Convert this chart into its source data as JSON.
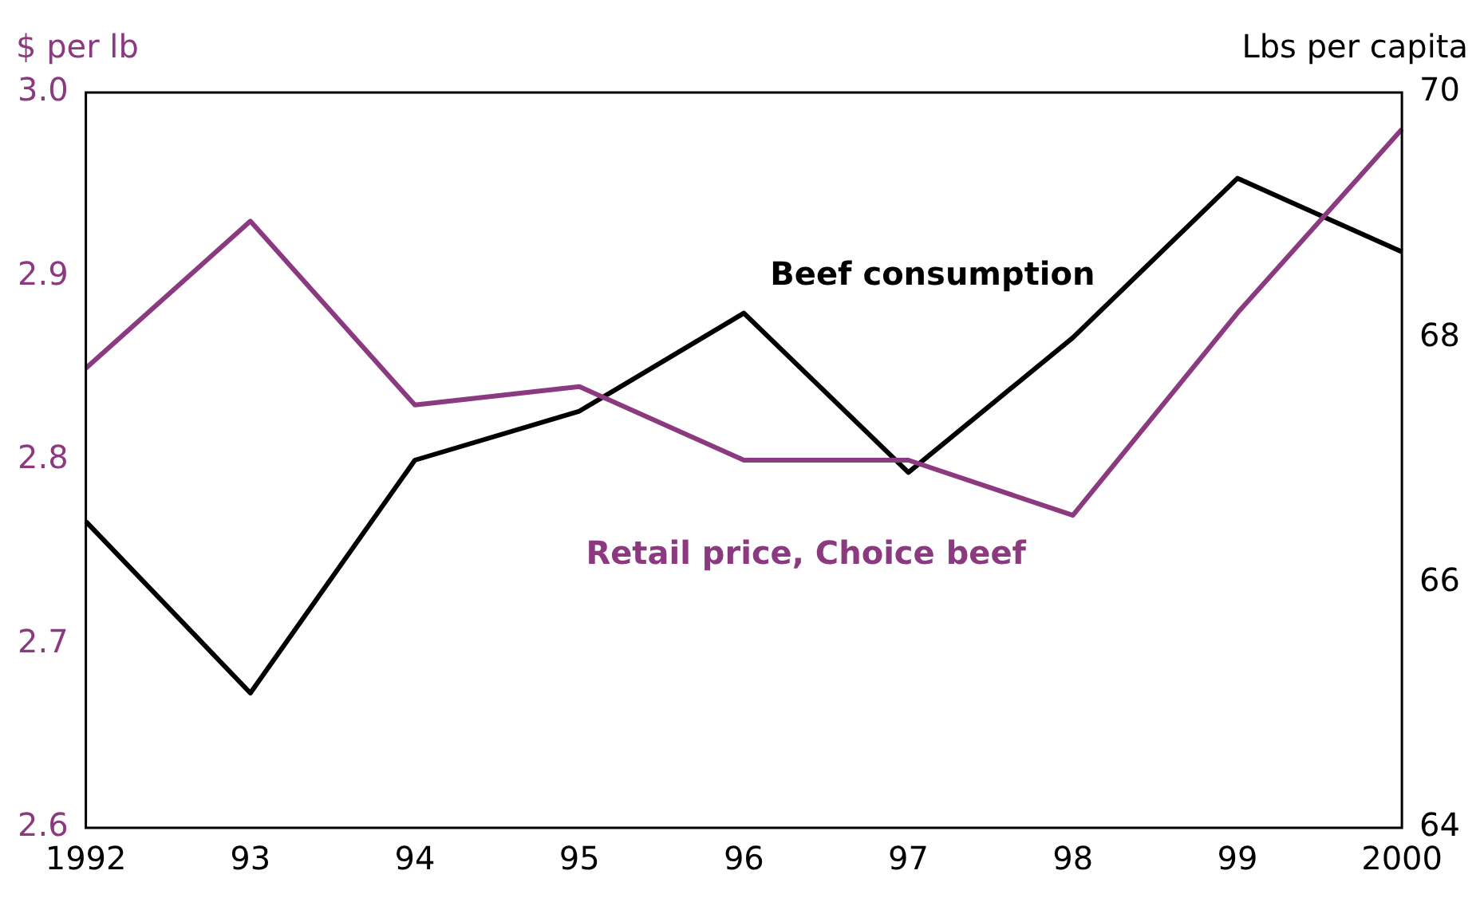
{
  "chart_data": {
    "type": "line",
    "ylabel": "$ per lb",
    "y2label": "Lbs per capita",
    "categories": [
      "1992",
      "93",
      "94",
      "95",
      "96",
      "97",
      "98",
      "99",
      "2000"
    ],
    "series": [
      {
        "name": "Retail price, Choice beef",
        "color": "#8b3a80",
        "values": [
          2.85,
          2.93,
          2.83,
          2.84,
          2.8,
          2.8,
          2.77,
          2.88,
          2.98
        ]
      },
      {
        "name": "Beef consumption",
        "color": "#000000",
        "axis": "y2",
        "values": [
          66.5,
          65.1,
          67.0,
          67.4,
          68.2,
          66.9,
          68.0,
          69.3,
          68.7
        ]
      }
    ],
    "ylim": [
      2.6,
      3.0
    ],
    "yticks": [
      2.6,
      2.7,
      2.8,
      2.9,
      {
        "value": 3,
        "label": "3.0"
      }
    ],
    "y2lim": [
      64,
      70
    ],
    "y2ticks": [
      64,
      66,
      68,
      70
    ],
    "grid": false,
    "legend": false,
    "marker": "none",
    "line_style": "solid"
  }
}
